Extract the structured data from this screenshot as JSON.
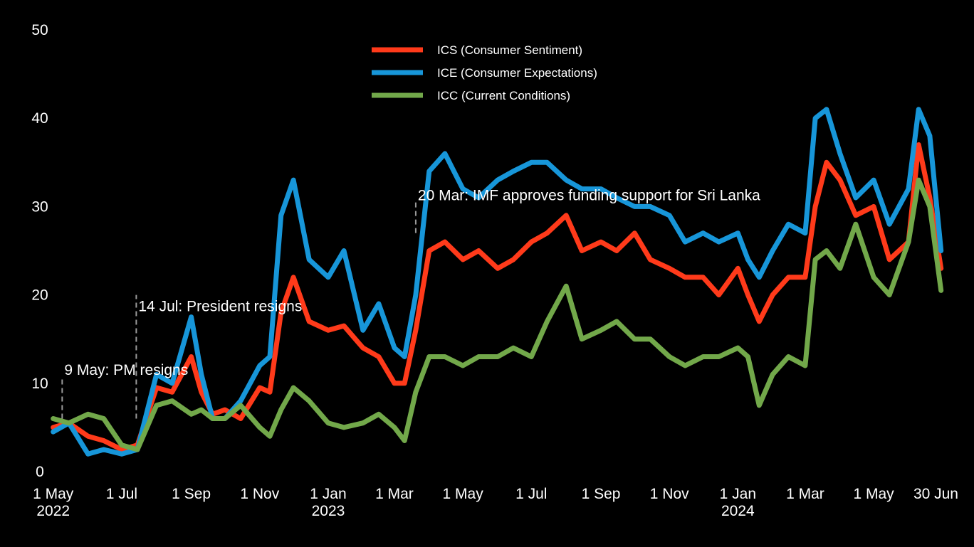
{
  "chart_data": {
    "type": "line",
    "title": "",
    "xlabel": "",
    "ylabel": "",
    "ylim": [
      0,
      50
    ],
    "xlim": [
      "2022-04-28",
      "2024-07-04"
    ],
    "grid": false,
    "legend_position": "top-center",
    "colors": {
      "ICS": "#ff3a1a",
      "ICE": "#1796d9",
      "ICC": "#72a84a",
      "annotation_line": "#9a9a9a",
      "background": "#000000",
      "text": "#ffffff"
    },
    "y_ticks": [
      "0",
      "10",
      "20",
      "30",
      "40",
      "50"
    ],
    "x_ticks": [
      {
        "date": "2022-05-01",
        "label": "1 May",
        "sub": "2022"
      },
      {
        "date": "2022-07-01",
        "label": "1 Jul",
        "sub": ""
      },
      {
        "date": "2022-09-01",
        "label": "1 Sep",
        "sub": ""
      },
      {
        "date": "2022-11-01",
        "label": "1 Nov",
        "sub": ""
      },
      {
        "date": "2023-01-01",
        "label": "1 Jan",
        "sub": "2023"
      },
      {
        "date": "2023-03-01",
        "label": "1 Mar",
        "sub": ""
      },
      {
        "date": "2023-05-01",
        "label": "1 May",
        "sub": ""
      },
      {
        "date": "2023-07-01",
        "label": "1 Jul",
        "sub": ""
      },
      {
        "date": "2023-09-01",
        "label": "1 Sep",
        "sub": ""
      },
      {
        "date": "2023-11-01",
        "label": "1 Nov",
        "sub": ""
      },
      {
        "date": "2024-01-01",
        "label": "1 Jan",
        "sub": "2024"
      },
      {
        "date": "2024-03-01",
        "label": "1 Mar",
        "sub": ""
      },
      {
        "date": "2024-05-01",
        "label": "1 May",
        "sub": ""
      },
      {
        "date": "2024-06-30",
        "label": "30 Jun",
        "sub": ""
      }
    ],
    "annotations": [
      {
        "date": "2022-05-09",
        "y_from": 6,
        "y_to": 10.5,
        "text": "9 May: PM resigns",
        "text_y": 11.5
      },
      {
        "date": "2022-07-14",
        "y_from": 6,
        "y_to": 20,
        "text": "14 Jul: President resigns",
        "text_y": 18.7
      },
      {
        "date": "2023-03-20",
        "y_from": 27,
        "y_to": 30.5,
        "text": "20 Mar: IMF approves funding support for Sri Lanka",
        "text_y": 31.3
      }
    ],
    "series": [
      {
        "key": "ICS",
        "name": "ICS (Consumer Sentiment)",
        "x": [
          "2022-05-01",
          "2022-05-15",
          "2022-06-01",
          "2022-06-15",
          "2022-07-01",
          "2022-07-15",
          "2022-08-01",
          "2022-08-15",
          "2022-09-01",
          "2022-09-10",
          "2022-09-20",
          "2022-10-01",
          "2022-10-15",
          "2022-11-01",
          "2022-11-10",
          "2022-11-20",
          "2022-12-01",
          "2022-12-15",
          "2023-01-01",
          "2023-01-15",
          "2023-02-01",
          "2023-02-15",
          "2023-03-01",
          "2023-03-10",
          "2023-03-20",
          "2023-04-01",
          "2023-04-15",
          "2023-05-01",
          "2023-05-15",
          "2023-06-01",
          "2023-06-15",
          "2023-07-01",
          "2023-07-15",
          "2023-08-01",
          "2023-08-15",
          "2023-09-01",
          "2023-09-15",
          "2023-10-01",
          "2023-10-15",
          "2023-11-01",
          "2023-11-15",
          "2023-12-01",
          "2023-12-15",
          "2024-01-01",
          "2024-01-10",
          "2024-01-20",
          "2024-02-01",
          "2024-02-15",
          "2024-03-01",
          "2024-03-10",
          "2024-03-20",
          "2024-04-01",
          "2024-04-15",
          "2024-05-01",
          "2024-05-15",
          "2024-06-01",
          "2024-06-10",
          "2024-06-20",
          "2024-06-30"
        ],
        "values": [
          5,
          5.5,
          4,
          3.5,
          2.5,
          3,
          9.5,
          9,
          13,
          9,
          6.5,
          7,
          6,
          9.5,
          9,
          18,
          22,
          17,
          16,
          16.5,
          14,
          13,
          10,
          10,
          16,
          25,
          26,
          24,
          25,
          23,
          24,
          26,
          27,
          29,
          25,
          26,
          25,
          27,
          24,
          23,
          22,
          22,
          20,
          23,
          20,
          17,
          20,
          22,
          22,
          30,
          35,
          33,
          29,
          30,
          24,
          26,
          37,
          31,
          23
        ]
      },
      {
        "key": "ICE",
        "name": "ICE (Consumer Expectations)",
        "x": [
          "2022-05-01",
          "2022-05-15",
          "2022-06-01",
          "2022-06-15",
          "2022-07-01",
          "2022-07-15",
          "2022-08-01",
          "2022-08-15",
          "2022-09-01",
          "2022-09-10",
          "2022-09-20",
          "2022-10-01",
          "2022-10-15",
          "2022-11-01",
          "2022-11-10",
          "2022-11-20",
          "2022-12-01",
          "2022-12-15",
          "2023-01-01",
          "2023-01-15",
          "2023-02-01",
          "2023-02-15",
          "2023-03-01",
          "2023-03-10",
          "2023-03-20",
          "2023-04-01",
          "2023-04-15",
          "2023-05-01",
          "2023-05-15",
          "2023-06-01",
          "2023-06-15",
          "2023-07-01",
          "2023-07-15",
          "2023-08-01",
          "2023-08-15",
          "2023-09-01",
          "2023-09-15",
          "2023-10-01",
          "2023-10-15",
          "2023-11-01",
          "2023-11-15",
          "2023-12-01",
          "2023-12-15",
          "2024-01-01",
          "2024-01-10",
          "2024-01-20",
          "2024-02-01",
          "2024-02-15",
          "2024-03-01",
          "2024-03-10",
          "2024-03-20",
          "2024-04-01",
          "2024-04-15",
          "2024-05-01",
          "2024-05-15",
          "2024-06-01",
          "2024-06-10",
          "2024-06-20",
          "2024-06-30"
        ],
        "values": [
          4.5,
          5.5,
          2,
          2.5,
          2,
          2.5,
          11,
          10,
          17.5,
          11,
          6,
          6,
          8,
          12,
          13,
          29,
          33,
          24,
          22,
          25,
          16,
          19,
          14,
          13,
          20,
          34,
          36,
          32,
          31,
          33,
          34,
          35,
          35,
          33,
          32,
          32,
          31,
          30,
          30,
          29,
          26,
          27,
          26,
          27,
          24,
          22,
          25,
          28,
          27,
          40,
          41,
          36,
          31,
          33,
          28,
          32,
          41,
          38,
          25
        ]
      },
      {
        "key": "ICC",
        "name": "ICC (Current Conditions)",
        "x": [
          "2022-05-01",
          "2022-05-15",
          "2022-06-01",
          "2022-06-15",
          "2022-07-01",
          "2022-07-15",
          "2022-08-01",
          "2022-08-15",
          "2022-09-01",
          "2022-09-10",
          "2022-09-20",
          "2022-10-01",
          "2022-10-15",
          "2022-11-01",
          "2022-11-10",
          "2022-11-20",
          "2022-12-01",
          "2022-12-15",
          "2023-01-01",
          "2023-01-15",
          "2023-02-01",
          "2023-02-15",
          "2023-03-01",
          "2023-03-10",
          "2023-03-20",
          "2023-04-01",
          "2023-04-15",
          "2023-05-01",
          "2023-05-15",
          "2023-06-01",
          "2023-06-15",
          "2023-07-01",
          "2023-07-15",
          "2023-08-01",
          "2023-08-15",
          "2023-09-01",
          "2023-09-15",
          "2023-10-01",
          "2023-10-15",
          "2023-11-01",
          "2023-11-15",
          "2023-12-01",
          "2023-12-15",
          "2024-01-01",
          "2024-01-10",
          "2024-01-20",
          "2024-02-01",
          "2024-02-15",
          "2024-03-01",
          "2024-03-10",
          "2024-03-20",
          "2024-04-01",
          "2024-04-15",
          "2024-05-01",
          "2024-05-15",
          "2024-06-01",
          "2024-06-10",
          "2024-06-20",
          "2024-06-30"
        ],
        "values": [
          6,
          5.5,
          6.5,
          6,
          3,
          2.5,
          7.5,
          8,
          6.5,
          7,
          6,
          6,
          7.5,
          5,
          4,
          7,
          9.5,
          8,
          5.5,
          5,
          5.5,
          6.5,
          5,
          3.5,
          9,
          13,
          13,
          12,
          13,
          13,
          14,
          13,
          17,
          21,
          15,
          16,
          17,
          15,
          15,
          13,
          12,
          13,
          13,
          14,
          13,
          7.5,
          11,
          13,
          12,
          24,
          25,
          23,
          28,
          22,
          20,
          26,
          33,
          30,
          20.5
        ]
      }
    ]
  }
}
